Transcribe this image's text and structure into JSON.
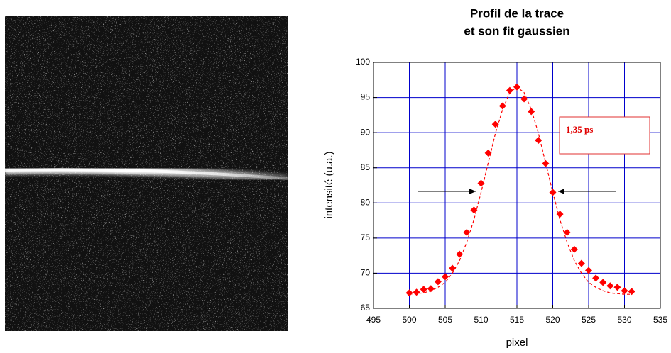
{
  "chart_data": {
    "type": "scatter",
    "title": [
      "Profil de la trace",
      "et son fit gaussien"
    ],
    "x_label": "pixel",
    "y_label": "intensité (u.a.)",
    "x": [
      500,
      501,
      502,
      503,
      504,
      505,
      506,
      507,
      508,
      509,
      510,
      511,
      512,
      513,
      514,
      515,
      516,
      517,
      518,
      519,
      520,
      521,
      522,
      523,
      524,
      525,
      526,
      527,
      528,
      529,
      530,
      531
    ],
    "series": [
      {
        "color": "#ff0000",
        "marker": "diamond",
        "values": [
          67.2,
          67.3,
          67.7,
          67.8,
          68.8,
          69.5,
          70.7,
          72.7,
          75.8,
          79.0,
          82.8,
          87.1,
          91.2,
          93.8,
          96.0,
          96.5,
          94.8,
          93.0,
          88.9,
          85.6,
          81.5,
          78.4,
          75.8,
          73.4,
          71.4,
          70.4,
          69.3,
          68.7,
          68.2,
          68.0,
          67.5,
          67.4
        ]
      },
      {
        "color": "#ff0000",
        "line": "dashed",
        "values": [
          67.0,
          67.1,
          67.2,
          67.5,
          68.0,
          68.7,
          70.0,
          71.8,
          74.4,
          77.6,
          81.5,
          85.7,
          89.9,
          93.3,
          95.7,
          96.5,
          95.7,
          93.3,
          89.9,
          85.7,
          81.5,
          77.6,
          74.4,
          71.8,
          70.0,
          68.7,
          68.0,
          67.5,
          67.2,
          67.1,
          67.0,
          67.0
        ]
      }
    ],
    "annotation": "1,35 ps",
    "xlim": [
      495,
      535
    ],
    "xticks": [
      495,
      500,
      505,
      510,
      515,
      520,
      525,
      530,
      535
    ],
    "ylim": [
      65,
      100
    ],
    "yticks": [
      65,
      70,
      75,
      80,
      85,
      90,
      95,
      100
    ],
    "grid": true,
    "grid_color": "#0000cc"
  }
}
